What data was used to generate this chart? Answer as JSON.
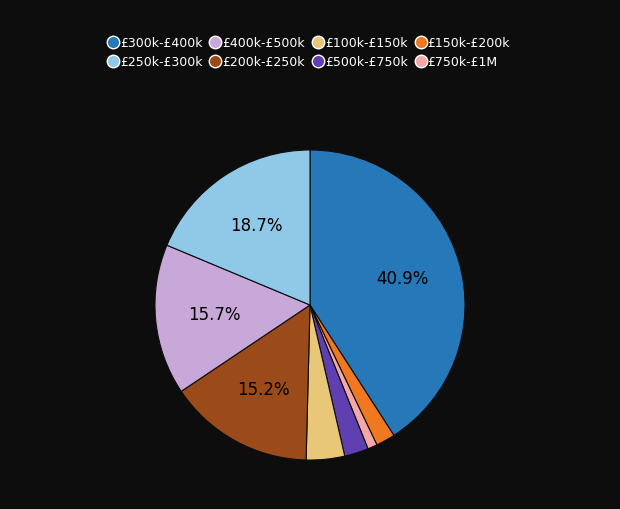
{
  "labels": [
    "£300k-£400k",
    "£150k-£200k",
    "£750k-£1M",
    "£500k-£750k",
    "£100k-£150k",
    "£200k-£250k",
    "£400k-£500k",
    "£250k-£300k"
  ],
  "values": [
    40.9,
    2.0,
    1.0,
    2.5,
    4.0,
    15.2,
    15.7,
    18.7
  ],
  "colors": [
    "#2778b8",
    "#f07820",
    "#f5a8a8",
    "#6040b0",
    "#e8c878",
    "#9b4a1a",
    "#c8a8d8",
    "#90c8e8"
  ],
  "show_labels": [
    true,
    false,
    false,
    false,
    false,
    true,
    true,
    true
  ],
  "pct_labels": [
    "40.9%",
    "",
    "",
    "",
    "",
    "15.2%",
    "15.7%",
    "18.7%"
  ],
  "legend_labels": [
    "£300k-£400k",
    "£250k-£300k",
    "£400k-£500k",
    "£200k-£250k",
    "£100k-£150k",
    "£500k-£750k",
    "£150k-£200k",
    "£750k-£1M"
  ],
  "legend_colors": [
    "#2778b8",
    "#90c8e8",
    "#c8a8d8",
    "#9b4a1a",
    "#e8c878",
    "#6040b0",
    "#f07820",
    "#f5a8a8"
  ],
  "background_color": "#0d0d0d",
  "text_color": "#ffffff",
  "label_color": "#000000",
  "figsize": [
    6.2,
    5.1
  ],
  "dpi": 100
}
